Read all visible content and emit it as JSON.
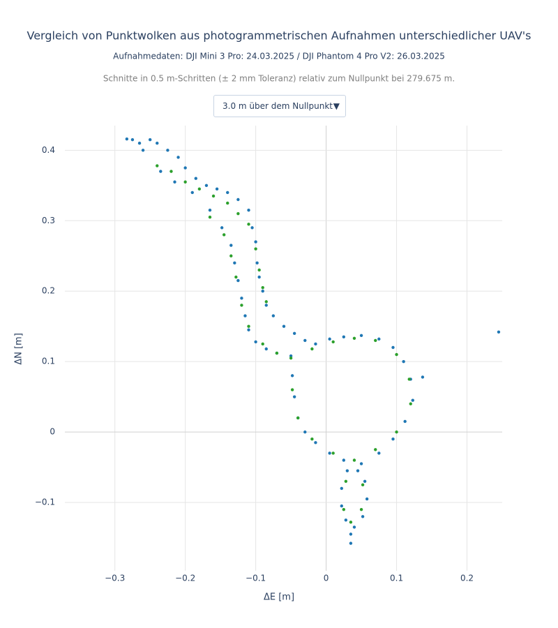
{
  "chart_data": {
    "type": "scatter",
    "title": "Vergleich von Punktwolken aus photogrammetrischen Aufnahmen unterschiedlicher UAV's",
    "subtitle": "Aufnahmedaten: DJI Mini 3 Pro: 24.03.2025 / DJI Phantom 4 Pro V2: 26.03.2025",
    "note": "Schnitte in 0.5 m-Schritten (± 2 mm Toleranz) relativ zum Nullpunkt bei 279.675 m.",
    "dropdown": "3.0 m über dem Nullpunkt",
    "x_label": "ΔE [m]",
    "y_label": "ΔN [m]",
    "xlim": [
      -0.371,
      0.25
    ],
    "ylim": [
      -0.197,
      0.435
    ],
    "xticks": [
      {
        "value": -0.3,
        "label": "−0.3"
      },
      {
        "value": -0.2,
        "label": "−0.2"
      },
      {
        "value": -0.1,
        "label": "−0.1"
      },
      0,
      0.1,
      0.2
    ],
    "yticks": [
      {
        "value": -0.1,
        "label": "−0.1"
      },
      0,
      0.1,
      0.2,
      0.3,
      0.4
    ],
    "grid": true,
    "series": [
      {
        "color": "#1f77b4",
        "x": [
          -0.283,
          -0.275,
          -0.265,
          -0.25,
          -0.24,
          -0.225,
          -0.21,
          -0.2,
          -0.185,
          -0.17,
          -0.155,
          -0.14,
          -0.125,
          -0.11,
          -0.105,
          -0.1,
          -0.098,
          -0.095,
          -0.09,
          -0.085,
          -0.075,
          -0.06,
          -0.045,
          -0.03,
          -0.26,
          -0.235,
          -0.215,
          -0.19,
          -0.165,
          -0.148,
          -0.135,
          -0.13,
          -0.125,
          -0.12,
          -0.115,
          -0.11,
          -0.1,
          -0.085,
          -0.07,
          -0.05,
          -0.048,
          -0.045,
          -0.04,
          -0.03,
          -0.015,
          0.005,
          0.025,
          0.05,
          0.075,
          0.095,
          0.112,
          0.123,
          0.12,
          0.11,
          0.095,
          0.075,
          0.05,
          0.025,
          0.005,
          -0.015,
          0.03,
          0.022,
          0.022,
          0.028,
          0.04,
          0.052,
          0.058,
          0.055,
          0.045,
          0.035,
          0.035,
          0.245,
          0.137
        ],
        "values": [
          0.416,
          0.415,
          0.41,
          0.415,
          0.41,
          0.4,
          0.39,
          0.375,
          0.36,
          0.35,
          0.345,
          0.34,
          0.33,
          0.315,
          0.29,
          0.27,
          0.24,
          0.22,
          0.2,
          0.18,
          0.165,
          0.15,
          0.14,
          0.13,
          0.4,
          0.37,
          0.355,
          0.34,
          0.315,
          0.29,
          0.265,
          0.24,
          0.215,
          0.19,
          0.165,
          0.145,
          0.128,
          0.118,
          0.112,
          0.108,
          0.08,
          0.05,
          0.02,
          0.0,
          -0.015,
          -0.03,
          -0.04,
          -0.045,
          -0.03,
          -0.01,
          0.015,
          0.045,
          0.075,
          0.1,
          0.12,
          0.132,
          0.137,
          0.135,
          0.132,
          0.125,
          -0.055,
          -0.08,
          -0.105,
          -0.125,
          -0.135,
          -0.12,
          -0.095,
          -0.07,
          -0.055,
          -0.145,
          -0.158,
          0.142,
          0.078
        ]
      },
      {
        "color": "#2ca02c",
        "x": [
          -0.24,
          -0.22,
          -0.2,
          -0.18,
          -0.16,
          -0.14,
          -0.125,
          -0.11,
          -0.1,
          -0.095,
          -0.09,
          -0.085,
          -0.165,
          -0.145,
          -0.135,
          -0.128,
          -0.12,
          -0.11,
          -0.09,
          -0.07,
          -0.05,
          -0.048,
          -0.04,
          -0.02,
          0.01,
          0.04,
          0.07,
          0.1,
          0.12,
          0.118,
          0.1,
          0.07,
          0.04,
          0.01,
          -0.02,
          0.028,
          0.025,
          0.035,
          0.05,
          0.052
        ],
        "values": [
          0.378,
          0.37,
          0.355,
          0.345,
          0.335,
          0.325,
          0.31,
          0.295,
          0.26,
          0.23,
          0.205,
          0.185,
          0.305,
          0.28,
          0.25,
          0.22,
          0.18,
          0.15,
          0.125,
          0.112,
          0.105,
          0.06,
          0.02,
          -0.01,
          -0.03,
          -0.04,
          -0.025,
          0.0,
          0.04,
          0.075,
          0.11,
          0.13,
          0.133,
          0.128,
          0.118,
          -0.07,
          -0.11,
          -0.128,
          -0.11,
          -0.075
        ]
      }
    ]
  }
}
